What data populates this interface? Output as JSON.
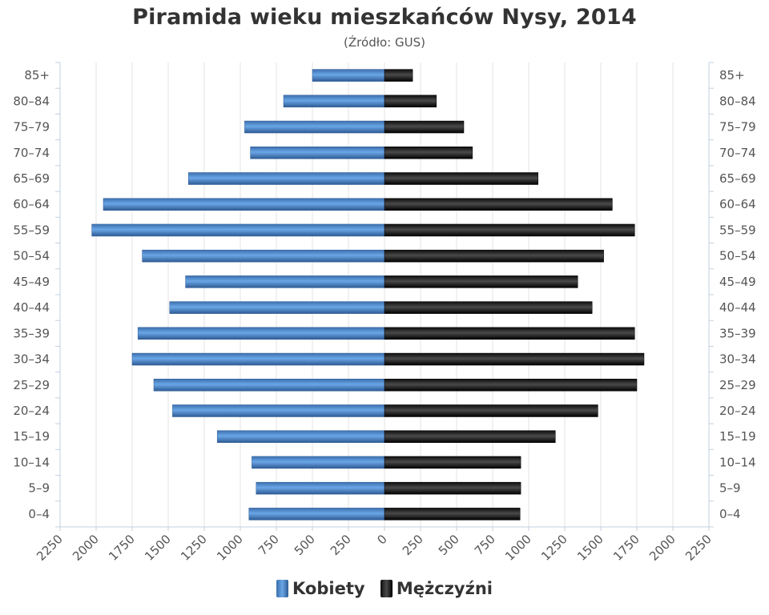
{
  "chart_data": {
    "type": "bar",
    "title": "Piramida wieku mieszkańców Nysy, 2014",
    "subtitle": "(Źródło: GUS)",
    "categories": [
      "0–4",
      "5–9",
      "10–14",
      "15–19",
      "20–24",
      "25–29",
      "30–34",
      "35–39",
      "40–44",
      "45–49",
      "50–54",
      "55–59",
      "60–64",
      "65–69",
      "70–74",
      "75–79",
      "80–84",
      "85+"
    ],
    "series": [
      {
        "name": "Kobiety",
        "color": "#4a86c8",
        "values": [
          940,
          890,
          920,
          1160,
          1470,
          1600,
          1750,
          1710,
          1490,
          1380,
          1680,
          2030,
          1950,
          1360,
          930,
          970,
          700,
          500
        ]
      },
      {
        "name": "Mężczyźni",
        "color": "#1a1a1a",
        "values": [
          940,
          945,
          945,
          1185,
          1480,
          1750,
          1800,
          1735,
          1440,
          1340,
          1520,
          1735,
          1580,
          1065,
          610,
          550,
          360,
          195
        ]
      }
    ],
    "xlim": [
      -2250,
      2250
    ],
    "x_ticks": [
      "2250",
      "2000",
      "1750",
      "1500",
      "1250",
      "1000",
      "750",
      "500",
      "250",
      "0",
      "250",
      "500",
      "750",
      "1000",
      "1250",
      "1500",
      "1750",
      "2000",
      "2250"
    ],
    "grid": true,
    "legend_position": "bottom"
  }
}
